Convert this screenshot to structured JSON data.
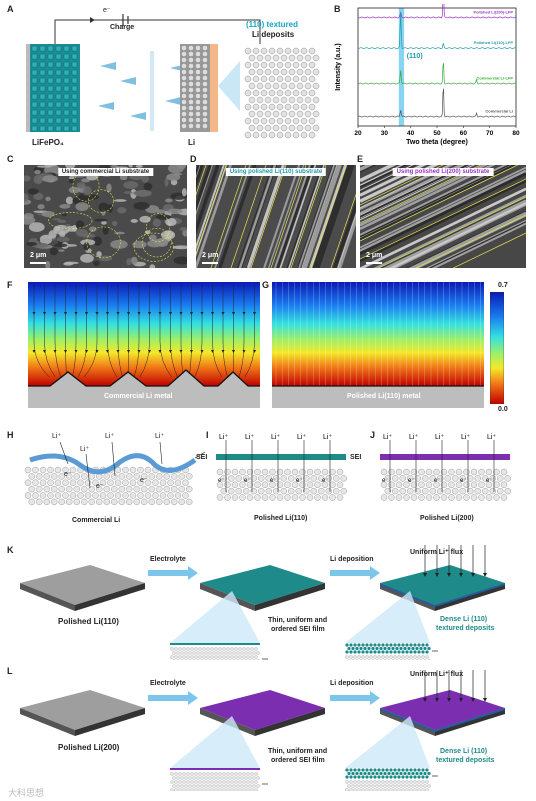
{
  "panels": {
    "A": "A",
    "B": "B",
    "C": "C",
    "D": "D",
    "E": "E",
    "F": "F",
    "G": "G",
    "H": "H",
    "I": "I",
    "J": "J",
    "K": "K",
    "L": "L"
  },
  "panelA": {
    "electron": "e⁻",
    "charge": "Charge",
    "cathode": "LiFePO₄",
    "anode": "Li",
    "deposit_title_line1": "(110) textured",
    "deposit_title_line2": "Li deposits"
  },
  "chart_data": {
    "type": "line",
    "xlabel": "Two theta (degree)",
    "ylabel": "Intensity (a.u.)",
    "xlim": [
      20,
      80
    ],
    "xticks": [
      20,
      30,
      40,
      50,
      60,
      70,
      80
    ],
    "highlight_label": "(110)",
    "highlight_range": [
      35.5,
      37.5
    ],
    "series": [
      {
        "name": "Polished Li(200)-LFP",
        "color": "#9b30c8",
        "baseline": 0.92,
        "peaks": [
          [
            36.2,
            0.04
          ],
          [
            52.4,
            0.25
          ]
        ]
      },
      {
        "name": "Polished Li(110)-LFP",
        "color": "#1e9aa8",
        "baseline": 0.66,
        "peaks": [
          [
            36.2,
            0.32
          ],
          [
            52.4,
            0.04
          ]
        ]
      },
      {
        "name": "Commercial Li-LFP",
        "color": "#3aa83a",
        "baseline": 0.36,
        "peaks": [
          [
            36.2,
            0.12
          ],
          [
            52.4,
            0.2
          ],
          [
            65.0,
            0.03
          ]
        ]
      },
      {
        "name": "Commercial Li",
        "color": "#555555",
        "baseline": 0.08,
        "peaks": [
          [
            36.2,
            0.06
          ],
          [
            52.4,
            0.28
          ],
          [
            65.0,
            0.03
          ]
        ]
      }
    ]
  },
  "panelC": {
    "title": "Using commercial Li substrate",
    "scale": "2 μm"
  },
  "panelD": {
    "title": "Using polished Li(110) substrate",
    "scale": "2 μm"
  },
  "panelE": {
    "title": "Using polished Li(200) substrate",
    "scale": "2 μm"
  },
  "panelF": {
    "label": "Commercial Li metal"
  },
  "panelG": {
    "label": "Polished Li(110) metal",
    "colorbar_max": "0.7",
    "colorbar_min": "0.0"
  },
  "panelH": {
    "ion": "Li⁺",
    "sei": "SEI",
    "electron": "e⁻",
    "caption": "Commercial Li"
  },
  "panelI": {
    "ion": "Li⁺",
    "sei": "SEI",
    "electron": "e⁻",
    "caption": "Polished Li(110)"
  },
  "panelJ": {
    "ion": "Li⁺",
    "electron": "e⁻",
    "caption": "Polished Li(200)"
  },
  "panelK": {
    "substrate": "Polished Li(110)",
    "step1": "Electrolyte",
    "step2": "Li deposition",
    "flux": "Uniform Li⁺ flux",
    "sei_line1": "Thin, uniform and",
    "sei_line2": "ordered SEI film",
    "dep_line1": "Dense Li (110)",
    "dep_line2": "textured deposits",
    "color": "#1f8a8a"
  },
  "panelL": {
    "substrate": "Polished Li(200)",
    "step1": "Electrolyte",
    "step2": "Li deposition",
    "flux": "Uniform Li⁺ flux",
    "sei_line1": "Thin, uniform and",
    "sei_line2": "ordered SEI film",
    "dep_line1": "Dense Li (110)",
    "dep_line2": "textured deposits",
    "color": "#7b2fb0"
  },
  "watermark": "大科思想"
}
